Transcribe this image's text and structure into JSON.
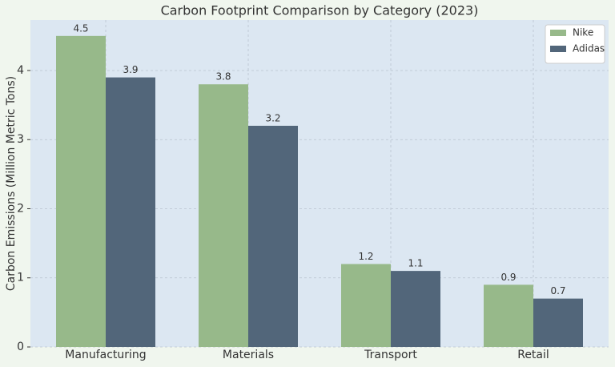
{
  "chart_data": {
    "type": "bar",
    "title": "Carbon Footprint Comparison by Category (2023)",
    "y_label": "Carbon Emissions (Million Metric Tons)",
    "categories": [
      "Manufacturing",
      "Materials",
      "Transport",
      "Retail"
    ],
    "series": [
      {
        "name": "Nike",
        "color": "#97b98a",
        "values": [
          4.5,
          3.8,
          1.2,
          0.9
        ]
      },
      {
        "name": "Adidas",
        "color": "#52667a",
        "values": [
          3.9,
          3.2,
          1.1,
          0.7
        ]
      }
    ],
    "ylim": [
      0,
      4.73
    ],
    "yticks": [
      0,
      1,
      2,
      3,
      4
    ],
    "grid": true,
    "legend": "upper-right"
  }
}
